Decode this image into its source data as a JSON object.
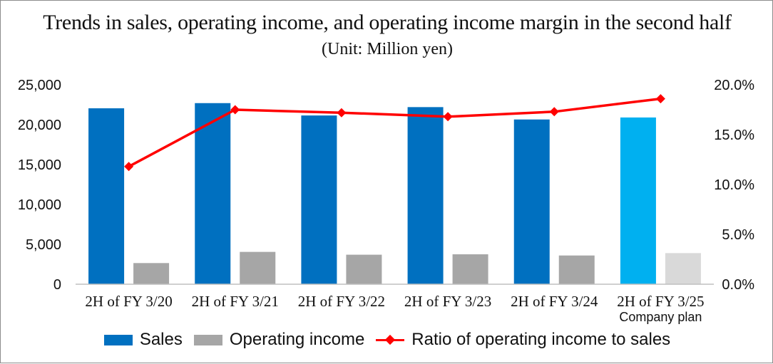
{
  "chart_data": {
    "type": "bar",
    "title": "Trends in sales, operating income, and operating income margin in the second half",
    "subtitle": "(Unit: Million yen)",
    "categories": [
      [
        "2H of FY 3/20"
      ],
      [
        "2H of FY 3/21"
      ],
      [
        "2H of FY 3/22"
      ],
      [
        "2H of FY 3/23"
      ],
      [
        "2H of FY 3/24"
      ],
      [
        "2H of FY 3/25",
        "Company plan"
      ]
    ],
    "series": [
      {
        "name": "Sales",
        "axis": "left",
        "type": "bar",
        "values": [
          22050,
          22700,
          21150,
          22200,
          20650,
          20900
        ]
      },
      {
        "name": "Operating income",
        "axis": "left",
        "type": "bar",
        "values": [
          2650,
          4050,
          3700,
          3750,
          3600,
          3900
        ]
      },
      {
        "name": "Ratio of operating income to sales",
        "axis": "right",
        "type": "line",
        "values": [
          11.8,
          17.5,
          17.2,
          16.8,
          17.3,
          18.6
        ]
      }
    ],
    "ylim_left": [
      0,
      25000
    ],
    "yticks_left": [
      "0",
      "5,000",
      "10,000",
      "15,000",
      "20,000",
      "25,000"
    ],
    "ylim_right": [
      0,
      20
    ],
    "yticks_right": [
      "0.0%",
      "5.0%",
      "10.0%",
      "15.0%",
      "20.0%"
    ],
    "grid": false,
    "legend_position": "bottom",
    "colors": {
      "sales": "#0070c0",
      "sales_plan": "#00b0f0",
      "operating_income": "#a6a6a6",
      "operating_income_plan": "#d9d9d9",
      "ratio_line": "#ff0000",
      "axis": "#bfbfbf"
    }
  }
}
